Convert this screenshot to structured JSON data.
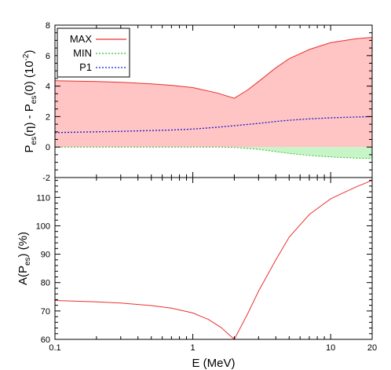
{
  "chart_data": [
    {
      "type": "area",
      "panel": "top",
      "x_scale": "log",
      "xlim": [
        0.1,
        20
      ],
      "ylim": [
        -2,
        8
      ],
      "yticks": [
        -2,
        0,
        2,
        4,
        6,
        8
      ],
      "ylabel_parts": [
        "P",
        "es",
        "(η) - P",
        "es",
        "(0)  (10",
        "-2",
        ")"
      ],
      "series": [
        {
          "name": "MAX",
          "color": "#e8322f",
          "fill": "#ffc4c4",
          "x": [
            0.1,
            0.2,
            0.3,
            0.5,
            0.7,
            1.0,
            1.5,
            2.0,
            2.5,
            3.0,
            4.0,
            5.0,
            7.0,
            10.0,
            15.0,
            20.0
          ],
          "y": [
            4.35,
            4.3,
            4.25,
            4.15,
            4.05,
            3.9,
            3.55,
            3.2,
            3.75,
            4.3,
            5.2,
            5.8,
            6.4,
            6.85,
            7.1,
            7.2
          ]
        },
        {
          "name": "MIN",
          "color": "#2fbf2f",
          "fill": "#c8f5c8",
          "x": [
            0.1,
            0.3,
            0.5,
            1.0,
            1.5,
            2.0,
            3.0,
            4.0,
            5.0,
            7.0,
            10.0,
            15.0,
            20.0
          ],
          "y": [
            0.0,
            0.0,
            0.0,
            0.0,
            0.0,
            -0.02,
            -0.15,
            -0.3,
            -0.42,
            -0.55,
            -0.65,
            -0.72,
            -0.75
          ]
        },
        {
          "name": "P1",
          "color": "#1a1acc",
          "x": [
            0.1,
            0.2,
            0.3,
            0.5,
            0.7,
            1.0,
            1.5,
            2.0,
            3.0,
            4.0,
            5.0,
            7.0,
            10.0,
            15.0,
            20.0
          ],
          "y": [
            0.95,
            1.0,
            1.03,
            1.08,
            1.12,
            1.18,
            1.3,
            1.4,
            1.55,
            1.68,
            1.76,
            1.85,
            1.92,
            1.97,
            2.0
          ]
        }
      ]
    },
    {
      "type": "line",
      "panel": "bottom",
      "x_scale": "log",
      "xlim": [
        0.1,
        20
      ],
      "ylim": [
        60,
        117
      ],
      "yticks": [
        60,
        70,
        80,
        90,
        100,
        110
      ],
      "xticks": [
        0.1,
        1,
        10,
        20
      ],
      "xticklabels": [
        "0.1",
        "1",
        "10",
        "20"
      ],
      "xlabel": "E (MeV)",
      "ylabel_parts": [
        "A(P",
        "es",
        ") (%)"
      ],
      "series": [
        {
          "color": "#e8322f",
          "x": [
            0.1,
            0.2,
            0.3,
            0.5,
            0.7,
            1.0,
            1.3,
            1.6,
            2.0,
            2.5,
            3.0,
            4.0,
            5.0,
            7.0,
            10.0,
            15.0,
            20.0
          ],
          "y": [
            73.7,
            73.2,
            72.8,
            71.9,
            71.0,
            69.3,
            67.0,
            64.2,
            60.0,
            69.0,
            77.0,
            88.0,
            96.0,
            104.0,
            109.5,
            113.5,
            116.0
          ]
        }
      ]
    }
  ]
}
